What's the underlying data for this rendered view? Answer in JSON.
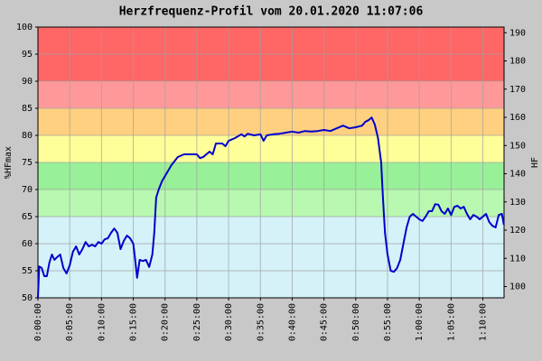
{
  "chart_data": {
    "type": "line",
    "title": "Herzfrequenz-Profil vom 20.01.2020 11:07:06",
    "ylabel": "%HFmax",
    "y2label": "HF",
    "color": "#0000cc",
    "grid": true,
    "zones": [
      {
        "from": 50,
        "to": 65,
        "color": "#d4f2f8"
      },
      {
        "from": 65,
        "to": 70,
        "color": "#b8f8b0"
      },
      {
        "from": 70,
        "to": 75,
        "color": "#98f098"
      },
      {
        "from": 75,
        "to": 80,
        "color": "#ffff99"
      },
      {
        "from": 80,
        "to": 85,
        "color": "#ffd080"
      },
      {
        "from": 85,
        "to": 90,
        "color": "#ff9999"
      },
      {
        "from": 90,
        "to": 100,
        "color": "#ff6666"
      }
    ],
    "xlim": [
      0,
      4400
    ],
    "xticks": [
      {
        "value": 0,
        "label": "0:00:00"
      },
      {
        "value": 300,
        "label": "0:05:00"
      },
      {
        "value": 600,
        "label": "0:10:00"
      },
      {
        "value": 900,
        "label": "0:15:00"
      },
      {
        "value": 1200,
        "label": "0:20:00"
      },
      {
        "value": 1500,
        "label": "0:25:00"
      },
      {
        "value": 1800,
        "label": "0:30:00"
      },
      {
        "value": 2100,
        "label": "0:35:00"
      },
      {
        "value": 2400,
        "label": "0:40:00"
      },
      {
        "value": 2700,
        "label": "0:45:00"
      },
      {
        "value": 3000,
        "label": "0:50:00"
      },
      {
        "value": 3300,
        "label": "0:55:00"
      },
      {
        "value": 3600,
        "label": "1:00:00"
      },
      {
        "value": 3900,
        "label": "1:05:00"
      },
      {
        "value": 4200,
        "label": "1:10:00"
      }
    ],
    "ylim": [
      50,
      100
    ],
    "yticks": [
      50,
      55,
      60,
      65,
      70,
      75,
      80,
      85,
      90,
      95,
      100
    ],
    "y2lim": [
      96,
      192
    ],
    "y2ticks": [
      100,
      110,
      120,
      130,
      140,
      150,
      160,
      170,
      180,
      190
    ],
    "x": [
      0,
      12,
      36,
      60,
      84,
      108,
      132,
      156,
      180,
      210,
      240,
      270,
      300,
      330,
      360,
      390,
      420,
      450,
      480,
      510,
      540,
      570,
      600,
      630,
      660,
      690,
      720,
      750,
      780,
      810,
      840,
      870,
      900,
      918,
      936,
      960,
      990,
      1020,
      1050,
      1080,
      1098,
      1116,
      1140,
      1170,
      1200,
      1260,
      1320,
      1380,
      1440,
      1500,
      1530,
      1560,
      1620,
      1650,
      1680,
      1740,
      1770,
      1800,
      1860,
      1920,
      1950,
      1980,
      2040,
      2100,
      2130,
      2160,
      2220,
      2280,
      2340,
      2400,
      2460,
      2520,
      2580,
      2640,
      2700,
      2760,
      2820,
      2880,
      2940,
      3000,
      3060,
      3090,
      3120,
      3150,
      3180,
      3210,
      3240,
      3258,
      3276,
      3300,
      3330,
      3360,
      3390,
      3420,
      3450,
      3480,
      3510,
      3540,
      3570,
      3600,
      3630,
      3660,
      3690,
      3720,
      3750,
      3780,
      3810,
      3840,
      3870,
      3900,
      3930,
      3960,
      3990,
      4020,
      4050,
      4080,
      4110,
      4140,
      4170,
      4200,
      4230,
      4260,
      4290,
      4320,
      4350,
      4380,
      4398
    ],
    "values": [
      50,
      55.8,
      55.5,
      54,
      54,
      56.5,
      58,
      57,
      57.5,
      58,
      55.5,
      54.5,
      56,
      58.5,
      59.5,
      58,
      59,
      60.3,
      59.5,
      59.8,
      59.5,
      60.3,
      60,
      60.8,
      61,
      62,
      62.8,
      62,
      59,
      60.5,
      61.5,
      61,
      60,
      57,
      53.7,
      57,
      56.8,
      57,
      55.7,
      58,
      62,
      68.5,
      70,
      71.5,
      72.5,
      74.5,
      76,
      76.5,
      76.5,
      76.5,
      75.8,
      76,
      77,
      76.5,
      78.5,
      78.5,
      78,
      79,
      79.5,
      80.2,
      79.8,
      80.3,
      80,
      80.2,
      79,
      80,
      80.2,
      80.3,
      80.5,
      80.7,
      80.5,
      80.8,
      80.7,
      80.8,
      81,
      80.8,
      81.3,
      81.8,
      81.3,
      81.5,
      81.8,
      82.5,
      82.8,
      83.3,
      82,
      79.5,
      75,
      68,
      62,
      58,
      55,
      54.8,
      55.5,
      57,
      60,
      63,
      65,
      65.5,
      65,
      64.5,
      64.2,
      65,
      66,
      66,
      67.3,
      67.2,
      66,
      65.5,
      66.5,
      65.3,
      66.8,
      67,
      66.5,
      66.8,
      65.5,
      64.5,
      65.3,
      65,
      64.5,
      65,
      65.5,
      64,
      63.3,
      63,
      65.3,
      65.5,
      63.5
    ]
  }
}
